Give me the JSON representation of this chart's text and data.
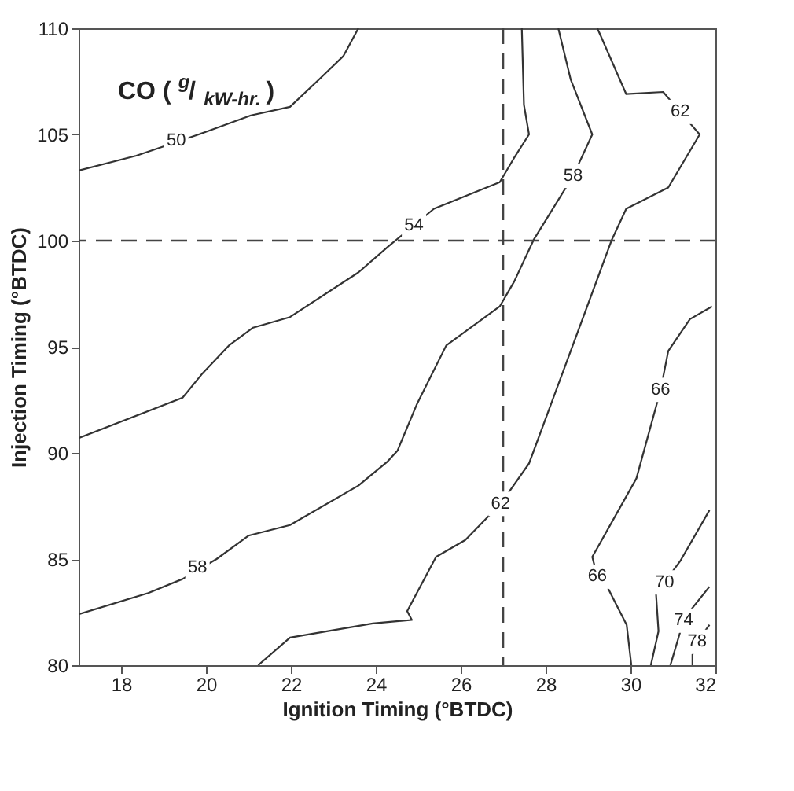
{
  "chart_data": {
    "type": "line",
    "title": "CO ($^{g}$/$_{kW-hr.}$)",
    "xlabel": "Ignition Timing (°BTDC)",
    "ylabel": "Injection Timing (°BTDC)",
    "xlim": [
      17,
      32
    ],
    "ylim": [
      80,
      110
    ],
    "xticks": [
      18,
      20,
      22,
      24,
      26,
      28,
      30,
      32
    ],
    "yticks": [
      80,
      85,
      90,
      95,
      100,
      105,
      110
    ],
    "grid": false,
    "line_style": "solid",
    "marker": "none",
    "series": [
      {
        "color": "#333333",
        "x": [
          17,
          18.36,
          19.97,
          21.06,
          21.98,
          22.67,
          23.24,
          23.59
        ],
        "values": [
          103.3,
          104.0,
          105.1,
          105.9,
          106.3,
          107.6,
          108.7,
          110
        ]
      },
      {
        "color": "#333333",
        "x": [
          17,
          19.45,
          19.9,
          20.54,
          21.11,
          21.98,
          23.59,
          24.28,
          25.37,
          26.92,
          27.26,
          27.61,
          27.49,
          27.44
        ],
        "values": [
          90.7,
          92.6,
          93.7,
          95.06,
          95.9,
          96.4,
          98.5,
          99.7,
          101.5,
          102.75,
          103.9,
          105.0,
          106.4,
          110
        ]
      },
      {
        "color": "#333333",
        "x": [
          28.3,
          28.59,
          29.1,
          28.65,
          27.72,
          27.26,
          26.92,
          25.66,
          24.97,
          24.51,
          24.28,
          23.59,
          21.98,
          21.0,
          20.25,
          19.45,
          18.64,
          17
        ],
        "values": [
          110,
          107.6,
          105.0,
          103.05,
          100.04,
          98.07,
          96.9,
          95.06,
          92.3,
          90.1,
          89.6,
          88.46,
          86.6,
          86.1,
          85.0,
          84.06,
          83.4,
          82.4
        ]
      },
      {
        "color": "#333333",
        "x": [
          29.22,
          29.9,
          30.77,
          31.17,
          31.63,
          30.89,
          29.9,
          29.56,
          28.64,
          27.61,
          26.94,
          26.11,
          25.42,
          24.74,
          24.85,
          23.93,
          21.98,
          21.23
        ],
        "values": [
          110,
          106.9,
          107.0,
          106.06,
          105.0,
          102.5,
          101.5,
          100.04,
          95.06,
          89.5,
          87.6,
          85.9,
          85.1,
          82.55,
          82.13,
          81.97,
          81.3,
          80
        ]
      },
      {
        "color": "#333333",
        "x": [
          31.92,
          31.4,
          30.89,
          30.71,
          30.14,
          29.1,
          29.22,
          29.45,
          29.91,
          30.02
        ],
        "values": [
          96.9,
          96.3,
          94.8,
          92.97,
          88.8,
          85.1,
          84.17,
          83.7,
          81.9,
          80
        ]
      },
      {
        "color": "#333333",
        "x": [
          31.86,
          31.17,
          30.8,
          30.6,
          30.66,
          30.48
        ],
        "values": [
          87.3,
          84.9,
          83.9,
          83.4,
          81.6,
          80
        ]
      },
      {
        "color": "#333333",
        "x": [
          31.86,
          31.4,
          31.25,
          30.94
        ],
        "values": [
          83.7,
          82.55,
          82.1,
          80
        ]
      },
      {
        "color": "#333333",
        "x": [
          31.86,
          31.57,
          31.46,
          31.46
        ],
        "values": [
          81.9,
          81.1,
          80.5,
          80
        ]
      }
    ],
    "annotations": [
      {
        "text": "50",
        "x": 19.3,
        "y": 104.7
      },
      {
        "text": "54",
        "x": 24.9,
        "y": 100.7
      },
      {
        "text": "58",
        "x": 28.65,
        "y": 103.05
      },
      {
        "text": "58",
        "x": 19.8,
        "y": 84.6
      },
      {
        "text": "62",
        "x": 31.17,
        "y": 106.06
      },
      {
        "text": "62",
        "x": 26.94,
        "y": 87.6
      },
      {
        "text": "66",
        "x": 30.71,
        "y": 92.97
      },
      {
        "text": "66",
        "x": 29.22,
        "y": 84.17
      },
      {
        "text": "70",
        "x": 30.8,
        "y": 83.9
      },
      {
        "text": "74",
        "x": 31.25,
        "y": 82.1
      },
      {
        "text": "78",
        "x": 31.57,
        "y": 81.1
      }
    ],
    "ref_lines": [
      {
        "axis": "x",
        "value": 27,
        "color": "#444444",
        "line_style": "dashed"
      },
      {
        "axis": "y",
        "value": 100,
        "color": "#444444",
        "line_style": "dashed"
      }
    ]
  }
}
